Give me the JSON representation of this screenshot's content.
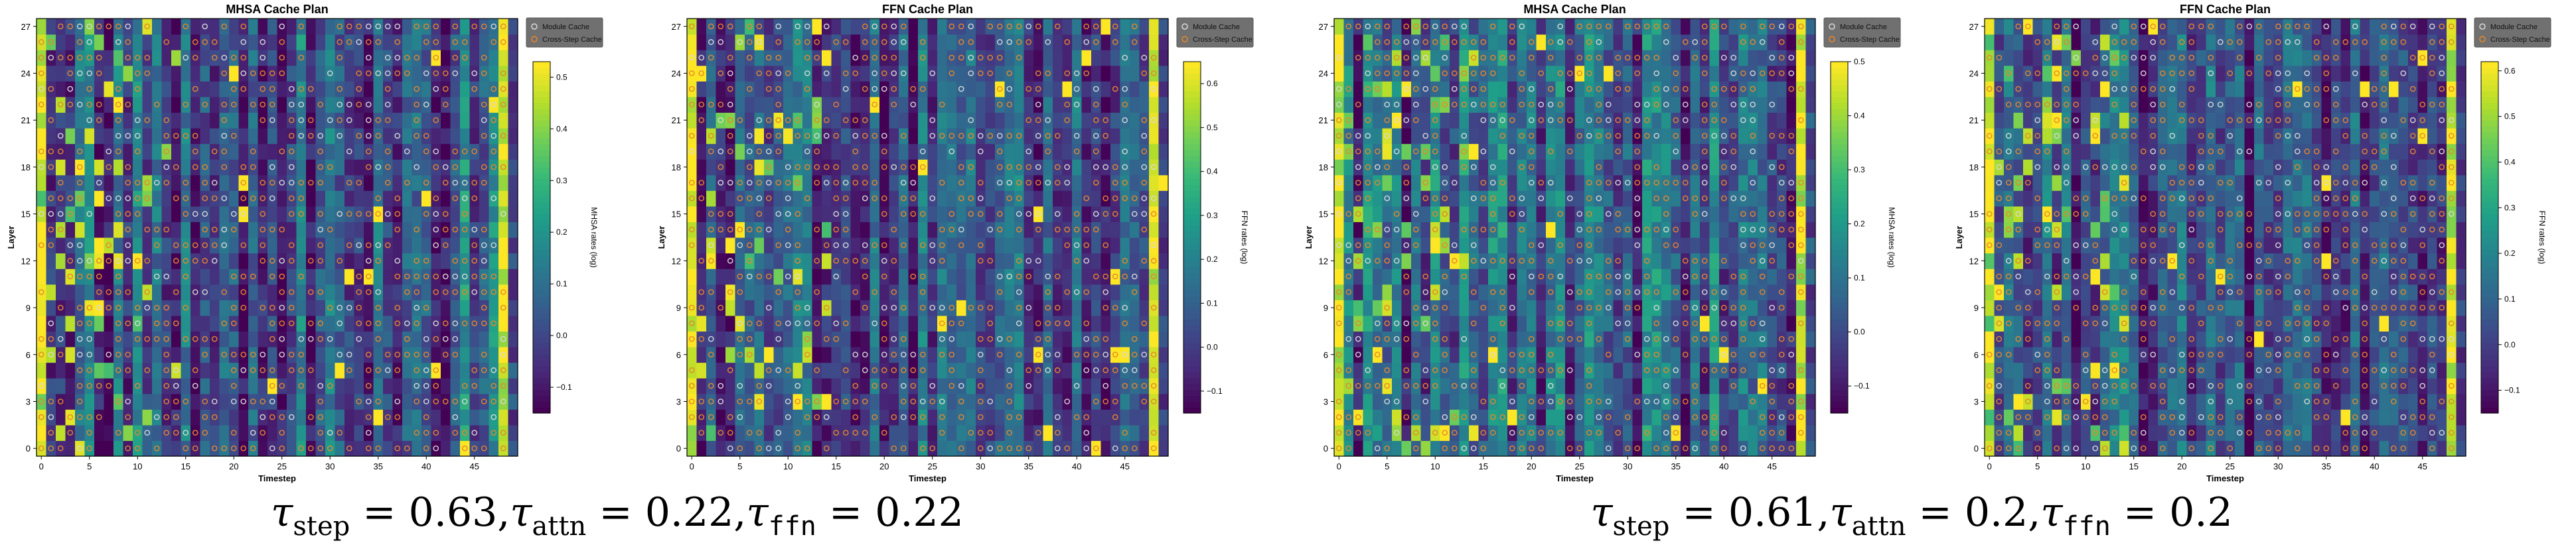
{
  "chart_data": [
    {
      "type": "heatmap",
      "title": "MHSA Cache Plan",
      "xlabel": "Timestep",
      "ylabel": "Layer",
      "colorbar_label": "MHSA rates (log)",
      "colorbar_ticks": [
        -0.1,
        0.0,
        0.1,
        0.2,
        0.3,
        0.4,
        0.5
      ],
      "clim": [
        -0.15,
        0.53
      ],
      "x_ticks": [
        0,
        5,
        10,
        15,
        20,
        25,
        30,
        35,
        40,
        45
      ],
      "y_ticks": [
        0,
        3,
        6,
        9,
        12,
        15,
        18,
        21,
        24,
        27
      ],
      "legend": [
        "Module Cache",
        "Cross-Step Cache"
      ],
      "legend_position": "outside-top-right",
      "seed": 11
    },
    {
      "type": "heatmap",
      "title": "FFN Cache Plan",
      "xlabel": "Timestep",
      "ylabel": "Layer",
      "colorbar_label": "FFN rates (log)",
      "colorbar_ticks": [
        -0.1,
        0.0,
        0.1,
        0.2,
        0.3,
        0.4,
        0.5,
        0.6
      ],
      "clim": [
        -0.15,
        0.65
      ],
      "x_ticks": [
        0,
        5,
        10,
        15,
        20,
        25,
        30,
        35,
        40,
        45
      ],
      "y_ticks": [
        0,
        3,
        6,
        9,
        12,
        15,
        18,
        21,
        24,
        27
      ],
      "legend": [
        "Module Cache",
        "Cross-Step Cache"
      ],
      "legend_position": "outside-top-right",
      "seed": 23
    },
    {
      "type": "heatmap",
      "title": "MHSA Cache Plan",
      "xlabel": "Timestep",
      "ylabel": "Layer",
      "colorbar_label": "MHSA rates (log)",
      "colorbar_ticks": [
        -0.1,
        0.0,
        0.1,
        0.2,
        0.3,
        0.4,
        0.5
      ],
      "clim": [
        -0.15,
        0.5
      ],
      "x_ticks": [
        0,
        5,
        10,
        15,
        20,
        25,
        30,
        35,
        40,
        45
      ],
      "y_ticks": [
        0,
        3,
        6,
        9,
        12,
        15,
        18,
        21,
        24,
        27
      ],
      "legend": [
        "Module Cache",
        "Cross-Step Cache"
      ],
      "legend_position": "outside-top-right",
      "seed": 37
    },
    {
      "type": "heatmap",
      "title": "FFN Cache Plan",
      "xlabel": "Timestep",
      "ylabel": "Layer",
      "colorbar_label": "FFN rates (log)",
      "colorbar_ticks": [
        -0.1,
        0.0,
        0.1,
        0.2,
        0.3,
        0.4,
        0.5,
        0.6
      ],
      "clim": [
        -0.15,
        0.62
      ],
      "x_ticks": [
        0,
        5,
        10,
        15,
        20,
        25,
        30,
        35,
        40,
        45
      ],
      "y_ticks": [
        0,
        3,
        6,
        9,
        12,
        15,
        18,
        21,
        24,
        27
      ],
      "legend": [
        "Module Cache",
        "Cross-Step Cache"
      ],
      "legend_position": "outside-top-right",
      "seed": 41
    }
  ],
  "captions": [
    {
      "tau_symbol": "τ",
      "step_sub": "step",
      "step_val": " = 0.63,",
      "attn_sub": "attn",
      "attn_val": " = 0.22,",
      "ffn_sub": "ffn",
      "ffn_val": " = 0.22"
    },
    {
      "tau_symbol": "τ",
      "step_sub": "step",
      "step_val": " = 0.61,",
      "attn_sub": "attn",
      "attn_val": " = 0.2,",
      "ffn_sub": "ffn",
      "ffn_val": " = 0.2"
    }
  ],
  "colors": {
    "viridis": [
      "#440154",
      "#482878",
      "#3e4989",
      "#31688e",
      "#26828e",
      "#1f9e89",
      "#35b779",
      "#6ece58",
      "#b5de2b",
      "#fde725"
    ],
    "module_marker": "#d8d8d8",
    "cross_marker": "#e8862a",
    "legend_bg": "#707070"
  }
}
